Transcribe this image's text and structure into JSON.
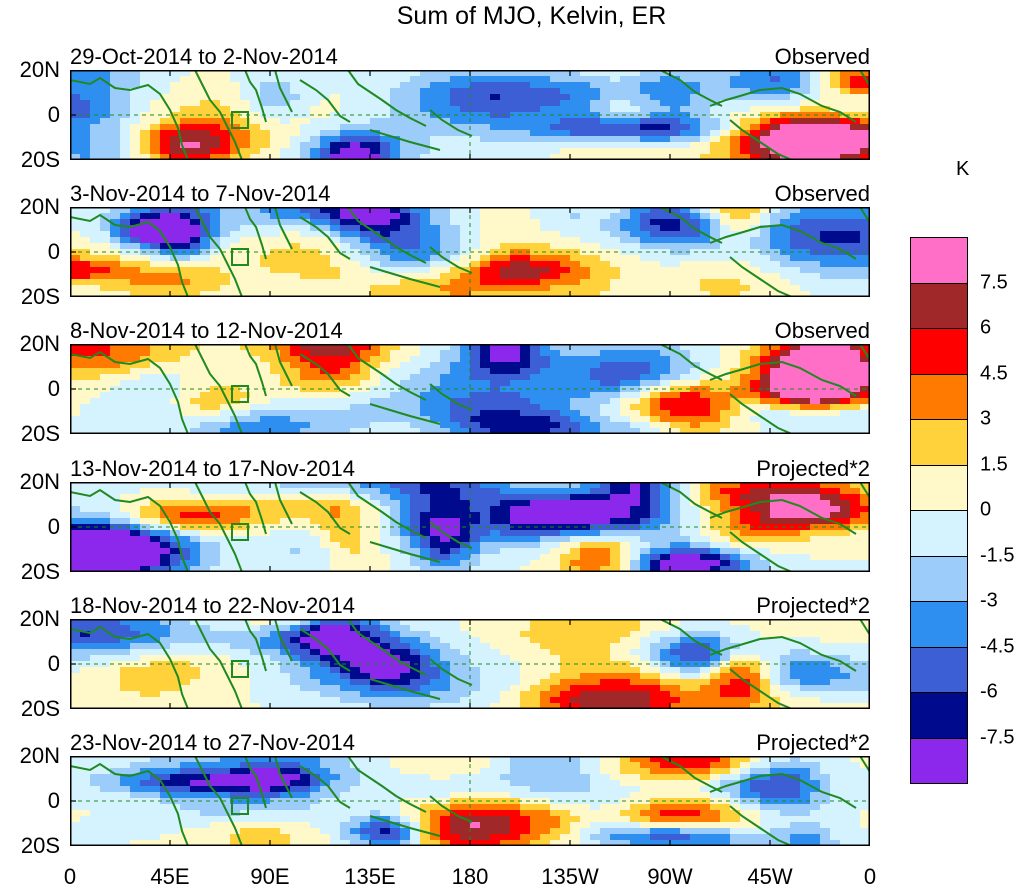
{
  "title": "Sum of MJO, Kelvin, ER",
  "lat_labels": [
    "20N",
    "0",
    "20S"
  ],
  "lon_labels": [
    "0",
    "45E",
    "90E",
    "135E",
    "180",
    "135W",
    "90W",
    "45W",
    "0"
  ],
  "panels": [
    {
      "date": "29-Oct-2014 to 2-Nov-2014",
      "status": "Observed",
      "seed": 1
    },
    {
      "date": "3-Nov-2014 to 7-Nov-2014",
      "status": "Observed",
      "seed": 2
    },
    {
      "date": "8-Nov-2014 to 12-Nov-2014",
      "status": "Observed",
      "seed": 3
    },
    {
      "date": "13-Nov-2014 to 17-Nov-2014",
      "status": "Projected*2",
      "seed": 4
    },
    {
      "date": "18-Nov-2014 to 22-Nov-2014",
      "status": "Projected*2",
      "seed": 5
    },
    {
      "date": "23-Nov-2014 to 27-Nov-2014",
      "status": "Projected*2",
      "seed": 6
    }
  ],
  "colorbar": {
    "unit": "K",
    "colors": [
      "#ff6ec7",
      "#a02828",
      "#ff0000",
      "#ff7a00",
      "#ffd23c",
      "#fff8c8",
      "#d4f3ff",
      "#9cccfa",
      "#2e8ff0",
      "#3d5fd6",
      "#000a8c",
      "#8c28ec"
    ],
    "labels": [
      "7.5",
      "6",
      "4.5",
      "3",
      "1.5",
      "0",
      "-1.5",
      "-3",
      "-4.5",
      "-6",
      "-7.5"
    ]
  },
  "coast_color": "#1f8a1f"
}
